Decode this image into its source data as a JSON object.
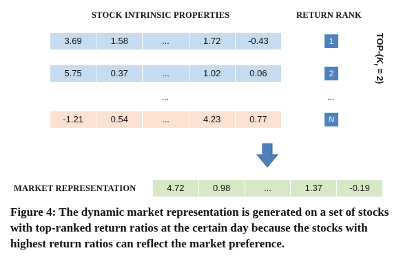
{
  "headers": {
    "properties": "STOCK INTRINSIC PROPERTIES",
    "rank": "RETURN RANK"
  },
  "rows": [
    {
      "values": [
        "3.69",
        "1.58",
        "...",
        "1.72",
        "-0.43"
      ],
      "rank": "1",
      "color": "#c6dbef"
    },
    {
      "values": [
        "5.75",
        "0.37",
        "...",
        "1.02",
        "0.06"
      ],
      "rank": "2",
      "color": "#c6dbef"
    },
    {
      "values": [
        "-1.21",
        "0.54",
        "...",
        "4.23",
        "0.77"
      ],
      "rank": "N",
      "color": "#fbe1d1"
    }
  ],
  "ellipsis": "...",
  "side_label": {
    "prefix": "TOP-(",
    "var": "K",
    "sub": "r",
    "suffix": " = 2)"
  },
  "arrow_color": "#4f81bd",
  "market": {
    "label": "MARKET REPRESENTATION",
    "values": [
      "4.72",
      "0.98",
      "...",
      "1.37",
      "-0.19"
    ],
    "color": "#d6e9c6"
  },
  "caption": "Figure 4: The dynamic market representation is generated on a set of stocks with top-ranked return ratios at the certain day because the stocks with highest return ratios can reflect the market preference."
}
